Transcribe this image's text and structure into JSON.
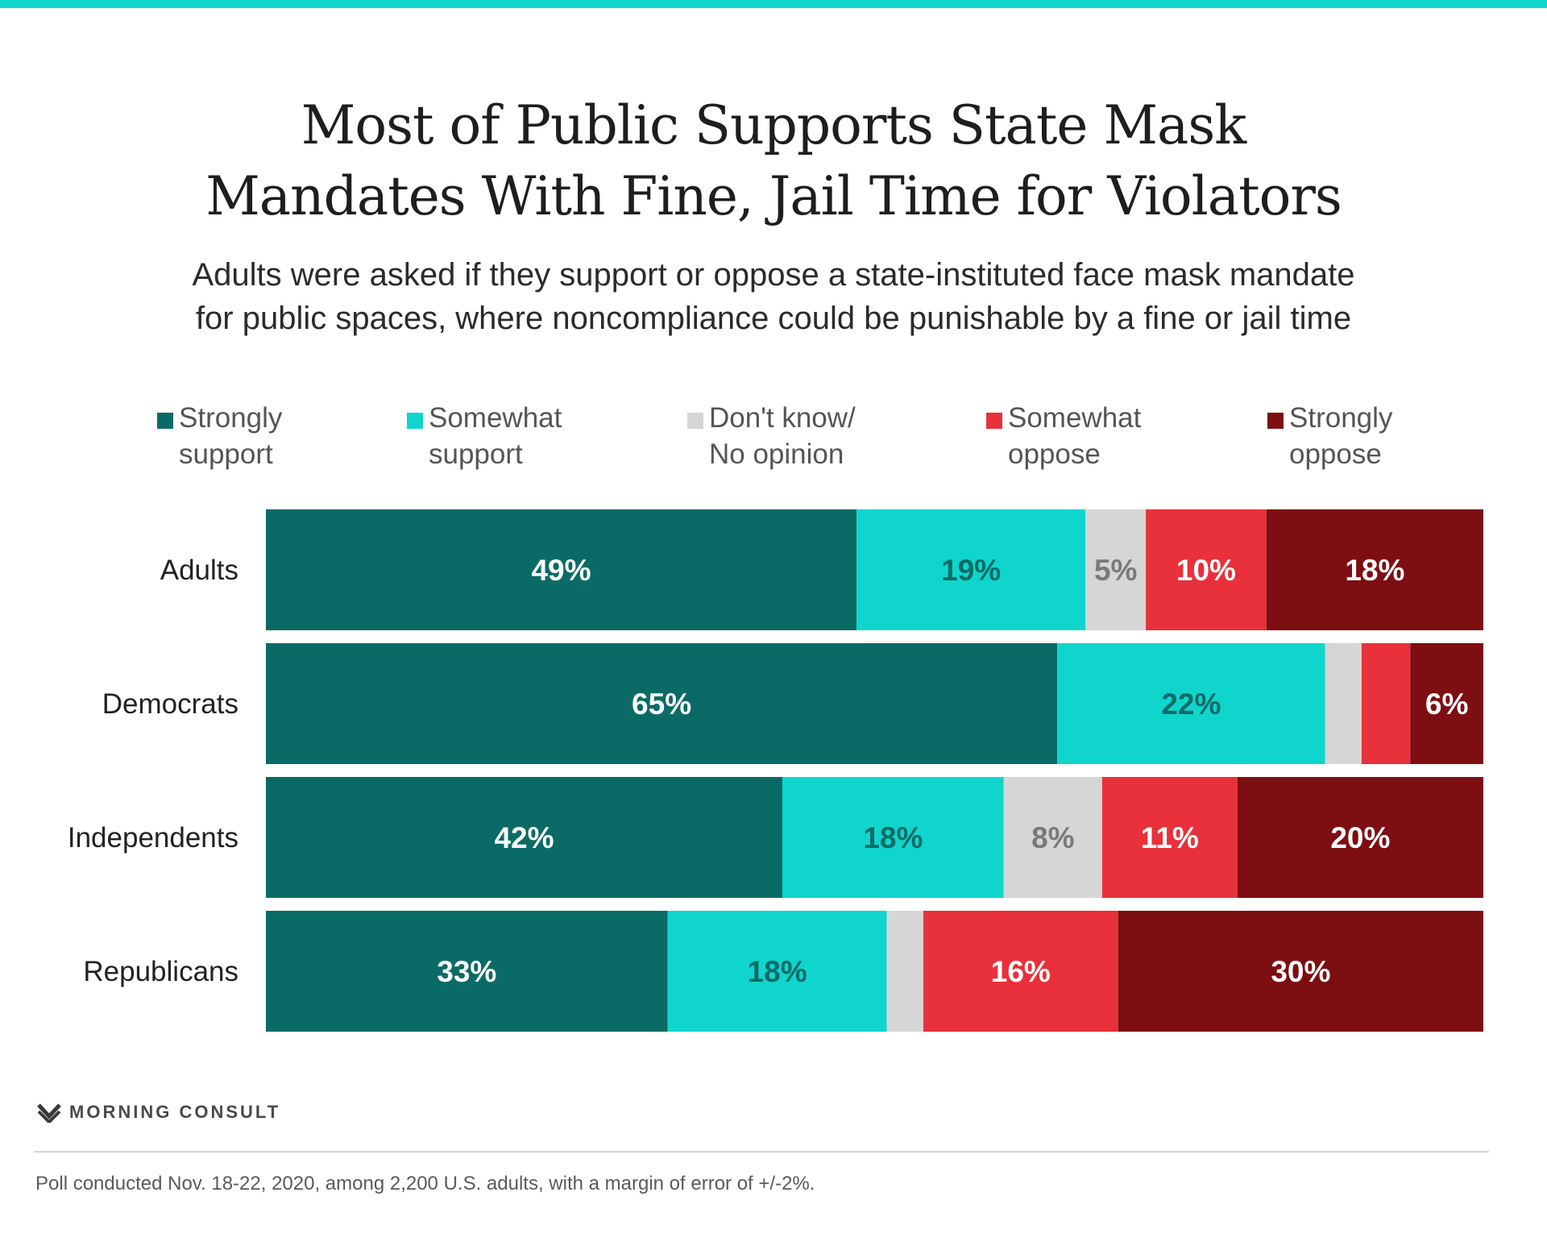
{
  "title_lines": [
    "Most of Public Supports State Mask",
    "Mandates With Fine, Jail Time for Violators"
  ],
  "subtitle_lines": [
    "Adults were asked if they support or oppose a state-instituted face mask mandate",
    "for public spaces, where noncompliance could be punishable by a fine or jail time"
  ],
  "legend": [
    {
      "lines": [
        "Strongly",
        "support"
      ],
      "color": "#0a6b66"
    },
    {
      "lines": [
        "Somewhat",
        "support"
      ],
      "color": "#10d5cd"
    },
    {
      "lines": [
        "Don't know/",
        "No opinion"
      ],
      "color": "#d6d6d6"
    },
    {
      "lines": [
        "Somewhat",
        "oppose"
      ],
      "color": "#e8313a"
    },
    {
      "lines": [
        "Strongly",
        "oppose"
      ],
      "color": "#7d0e12"
    }
  ],
  "chart_data": {
    "type": "bar",
    "orientation": "horizontal",
    "stacked": true,
    "title": "Most of Public Supports State Mask Mandates With Fine, Jail Time for Violators",
    "categories": [
      "Adults",
      "Democrats",
      "Independents",
      "Republicans"
    ],
    "series": [
      {
        "name": "Strongly support",
        "color": "#0a6b66",
        "label_color": "#ffffff",
        "values": [
          49,
          65,
          42,
          33
        ],
        "labels": [
          "49%",
          "65%",
          "42%",
          "33%"
        ]
      },
      {
        "name": "Somewhat support",
        "color": "#10d5cd",
        "label_color": "#0a6b66",
        "values": [
          19,
          22,
          18,
          18
        ],
        "labels": [
          "19%",
          "22%",
          "18%",
          "18%"
        ]
      },
      {
        "name": "Don't know/No opinion",
        "color": "#d6d6d6",
        "label_color": "#7a7a7a",
        "values": [
          5,
          3,
          8,
          3
        ],
        "labels": [
          "5%",
          "",
          "8%",
          ""
        ]
      },
      {
        "name": "Somewhat oppose",
        "color": "#e8313a",
        "label_color": "#ffffff",
        "values": [
          10,
          4,
          11,
          16
        ],
        "labels": [
          "10%",
          "",
          "11%",
          "16%"
        ]
      },
      {
        "name": "Strongly oppose",
        "color": "#7d0e12",
        "label_color": "#ffffff",
        "values": [
          18,
          6,
          20,
          30
        ],
        "labels": [
          "18%",
          "6%",
          "20%",
          "30%"
        ]
      }
    ],
    "xlim": [
      0,
      100
    ]
  },
  "brand": "MORNING CONSULT",
  "footnote": "Poll conducted Nov. 18-22, 2020, among 2,200 U.S. adults, with a margin of error of +/-2%."
}
